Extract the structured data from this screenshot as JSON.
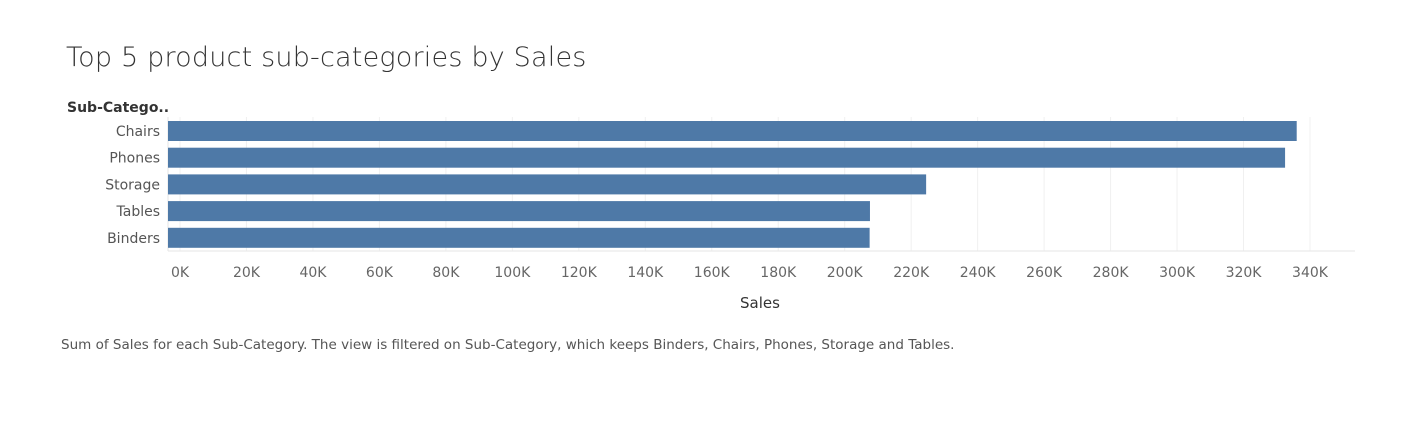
{
  "chart_data": {
    "type": "bar",
    "orientation": "horizontal",
    "title": "Top 5 product sub-categories by Sales",
    "row_header": "Sub-Catego..",
    "xlabel": "Sales",
    "categories": [
      "Chairs",
      "Phones",
      "Storage",
      "Tables",
      "Binders"
    ],
    "values": [
      336000,
      332500,
      224500,
      207600,
      207500
    ],
    "xlim": [
      0,
      350000
    ],
    "x_ticks": [
      0,
      20000,
      40000,
      60000,
      80000,
      100000,
      120000,
      140000,
      160000,
      180000,
      200000,
      220000,
      240000,
      260000,
      280000,
      300000,
      320000,
      340000
    ],
    "x_tick_labels": [
      "0K",
      "20K",
      "40K",
      "60K",
      "80K",
      "100K",
      "120K",
      "140K",
      "160K",
      "180K",
      "200K",
      "220K",
      "240K",
      "260K",
      "280K",
      "300K",
      "320K",
      "340K"
    ],
    "bar_color": "#4e79a7",
    "grid": true
  },
  "caption": "Sum of Sales for each Sub-Category. The view is filtered on Sub-Category, which keeps Binders, Chairs, Phones, Storage and Tables."
}
